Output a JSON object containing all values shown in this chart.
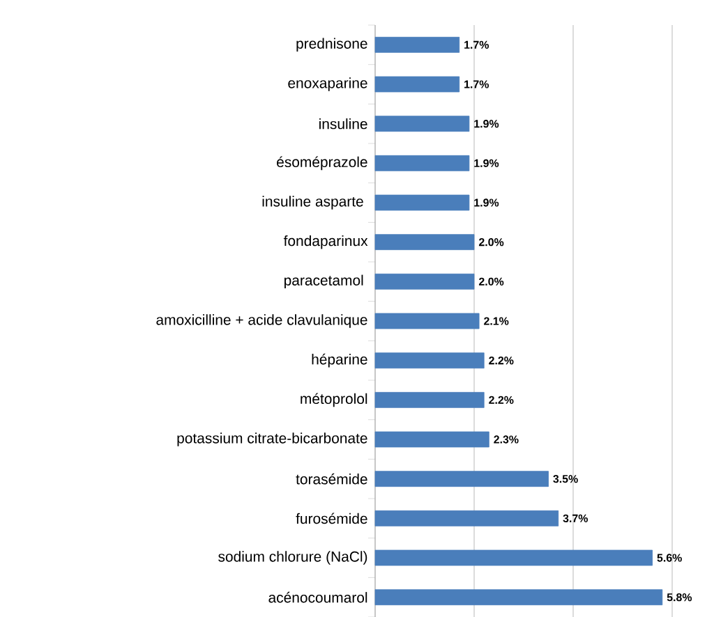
{
  "chart_data": {
    "type": "bar",
    "orientation": "horizontal",
    "categories": [
      "prednisone",
      "enoxaparine",
      "insuline",
      "ésoméprazole",
      "insuline asparte ",
      "fondaparinux",
      "paracetamol ",
      "amoxicilline + acide clavulanique",
      "héparine",
      "métoprolol",
      "potassium citrate-bicarbonate",
      "torasémide",
      "furosémide",
      "sodium chlorure (NaCl)",
      "acénocoumarol"
    ],
    "values": [
      1.7,
      1.7,
      1.9,
      1.9,
      1.9,
      2.0,
      2.0,
      2.1,
      2.2,
      2.2,
      2.3,
      3.5,
      3.7,
      5.6,
      5.8
    ],
    "value_labels": [
      "1.7%",
      "1.7%",
      "1.9%",
      "1.9%",
      "1.9%",
      "2.0%",
      "2.0%",
      "2.1%",
      "2.2%",
      "2.2%",
      "2.3%",
      "3.5%",
      "3.7%",
      "5.6%",
      "5.8%"
    ],
    "color": "#4a7ebb",
    "xlim": [
      0,
      6
    ],
    "xticks": [
      {
        "value": 0,
        "label": null
      },
      {
        "value": 2,
        "label": null
      },
      {
        "value": 4,
        "label": null
      },
      {
        "value": 6,
        "label": null
      }
    ],
    "grid": "x",
    "tick_labels": "y"
  }
}
